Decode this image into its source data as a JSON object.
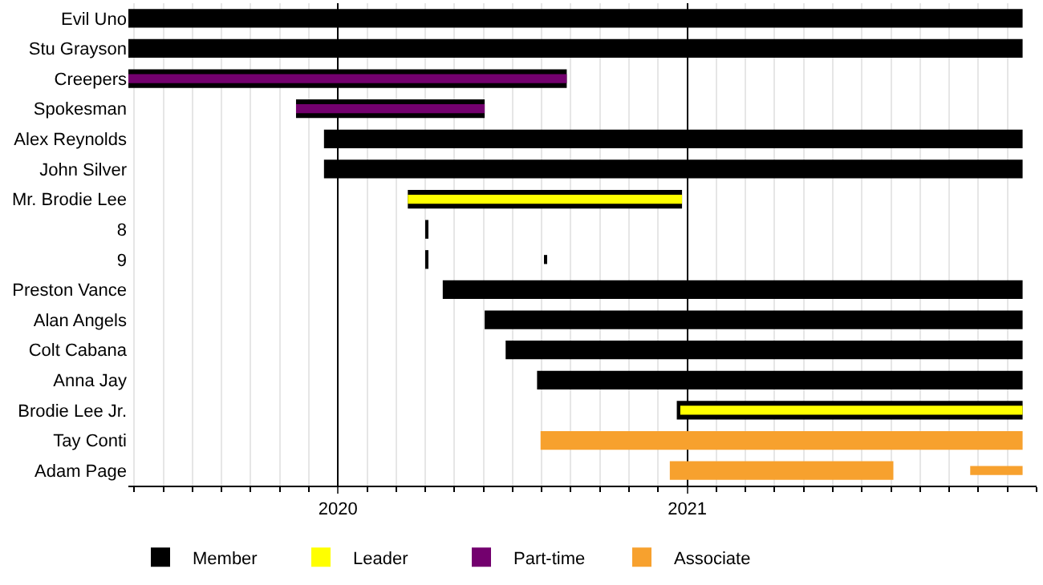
{
  "chart_data": {
    "type": "bar",
    "orientation": "horizontal",
    "categories": [
      "Evil Uno",
      "Stu Grayson",
      "Creepers",
      "Spokesman",
      "Alex Reynolds",
      "John Silver",
      "Mr. Brodie Lee",
      "8",
      "9",
      "Preston Vance",
      "Alan Angels",
      "Colt Cabana",
      "Anna Jay",
      "Brodie Lee Jr.",
      "Tay Conti",
      "Adam Page"
    ],
    "series": [
      {
        "name": "Member",
        "color": "#000000",
        "base": [
          2019.4,
          2019.4,
          2019.4,
          2019.88,
          2019.96,
          2019.96,
          2020.2,
          2020.25,
          2020.25,
          2020.3,
          2020.42,
          2020.48,
          2020.57,
          2020.97,
          null,
          null
        ],
        "values": [
          2.56,
          2.56,
          1.255,
          0.54,
          2.0,
          2.0,
          0.785,
          0.005,
          0.005,
          1.66,
          1.54,
          1.48,
          1.39,
          0.99,
          null,
          null
        ]
      },
      {
        "color": "#000000",
        "base": [
          null,
          null,
          null,
          null,
          null,
          null,
          null,
          null,
          2020.59,
          null,
          null,
          null,
          null,
          null,
          null,
          null
        ],
        "values": [
          null,
          null,
          null,
          null,
          null,
          null,
          null,
          null,
          0.005,
          null,
          null,
          null,
          null,
          null,
          null,
          null
        ]
      },
      {
        "name": "Leader",
        "color": "#ffff00",
        "base": [
          null,
          null,
          null,
          null,
          null,
          null,
          2020.2,
          null,
          null,
          null,
          null,
          null,
          null,
          2020.98,
          null,
          null
        ],
        "values": [
          null,
          null,
          null,
          null,
          null,
          null,
          0.785,
          null,
          null,
          null,
          null,
          null,
          null,
          0.98,
          null,
          null
        ]
      },
      {
        "name": "Part-time",
        "color": "#73006e",
        "base": [
          null,
          null,
          2019.4,
          2019.88,
          null,
          null,
          null,
          null,
          null,
          null,
          null,
          null,
          null,
          null,
          null,
          null
        ],
        "values": [
          null,
          null,
          1.255,
          0.54,
          null,
          null,
          null,
          null,
          null,
          null,
          null,
          null,
          null,
          null,
          null,
          null
        ]
      },
      {
        "name": "Associate",
        "color": "#f7a12e",
        "base": [
          null,
          null,
          null,
          null,
          null,
          null,
          null,
          null,
          null,
          null,
          null,
          null,
          null,
          null,
          2020.58,
          2020.95
        ],
        "values": [
          null,
          null,
          null,
          null,
          null,
          null,
          null,
          null,
          null,
          null,
          null,
          null,
          null,
          null,
          1.38,
          0.64
        ]
      },
      {
        "color": "#f7a12e",
        "base": [
          null,
          null,
          null,
          null,
          null,
          null,
          null,
          null,
          null,
          null,
          null,
          null,
          null,
          null,
          null,
          2021.81
        ],
        "values": [
          null,
          null,
          null,
          null,
          null,
          null,
          null,
          null,
          null,
          null,
          null,
          null,
          null,
          null,
          null,
          0.15
        ]
      }
    ],
    "xlim": [
      2019.4,
      2022.0
    ],
    "xticks": [
      2020,
      2021
    ],
    "grid": "x",
    "legend": "bottom"
  }
}
